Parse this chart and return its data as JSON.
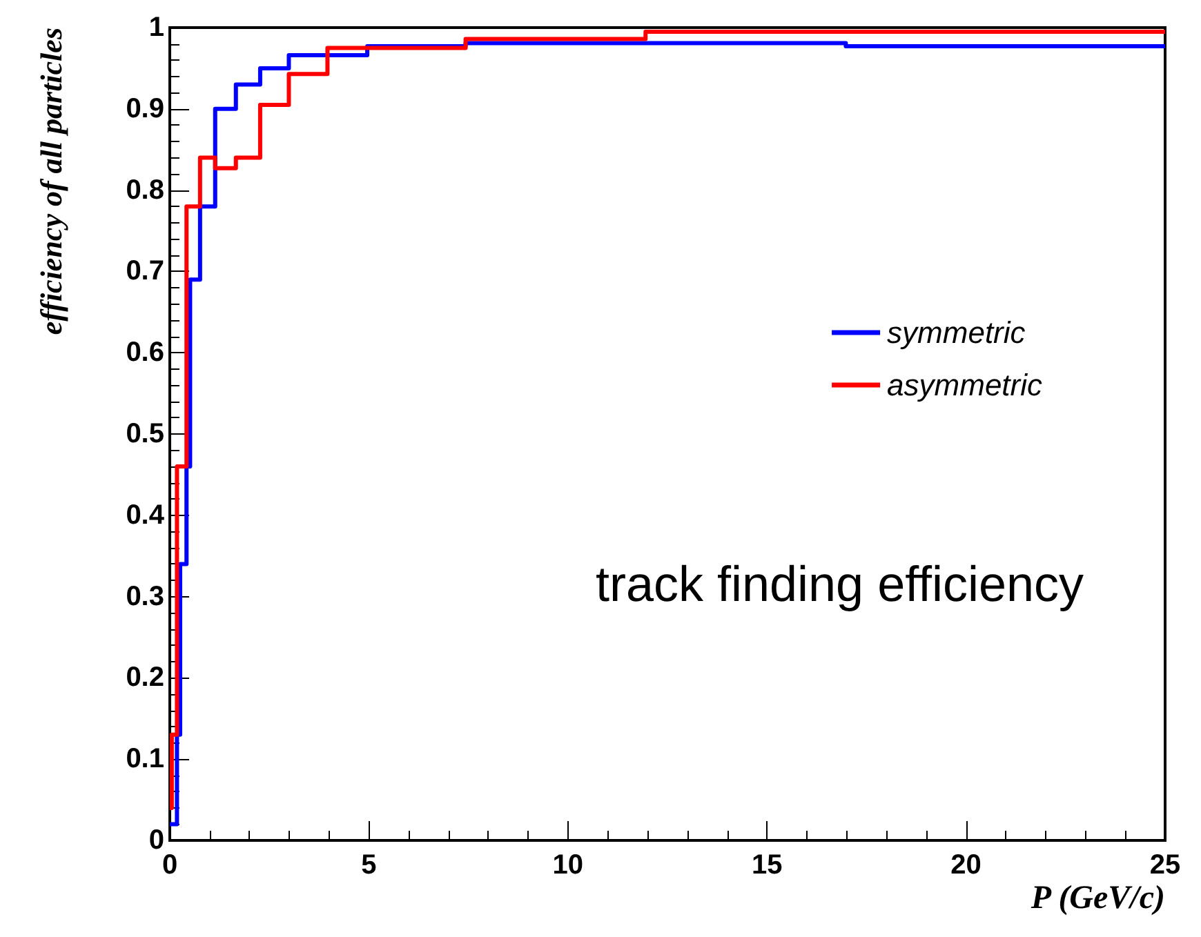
{
  "chart_data": {
    "type": "step",
    "xlabel": "P (GeV/c)",
    "ylabel": "efficiency of all particles",
    "annotations": [
      "track finding efficiency"
    ],
    "series": [
      {
        "name": "symmetric",
        "color": "#0000ff",
        "x": [
          0,
          0.18,
          0.26,
          0.42,
          0.51,
          0.76,
          1.14,
          1.66,
          2.27,
          2.99,
          4.96,
          7.43,
          16.98,
          25
        ],
        "values": [
          0.02,
          0.13,
          0.34,
          0.46,
          0.69,
          0.78,
          0.9,
          0.93,
          0.95,
          0.966,
          0.977,
          0.981,
          0.977,
          0.977
        ]
      },
      {
        "name": "asymmetric",
        "color": "#ff0000",
        "x": [
          0,
          0.05,
          0.18,
          0.42,
          0.76,
          1.14,
          1.66,
          2.27,
          2.99,
          3.96,
          7.43,
          11.95,
          25
        ],
        "values": [
          0.04,
          0.13,
          0.46,
          0.78,
          0.84,
          0.827,
          0.84,
          0.905,
          0.943,
          0.975,
          0.986,
          0.995,
          0.995
        ]
      }
    ],
    "xlim": [
      0,
      25
    ],
    "xticks": [
      0,
      5,
      10,
      15,
      20,
      25
    ],
    "ylim": [
      0,
      1
    ],
    "yticks": [
      0,
      0.1,
      0.2,
      0.3,
      0.4,
      0.5,
      0.6,
      0.7,
      0.8,
      0.9,
      1
    ],
    "grid": false,
    "legend": "right",
    "marker": "none",
    "line_style": "solid"
  }
}
